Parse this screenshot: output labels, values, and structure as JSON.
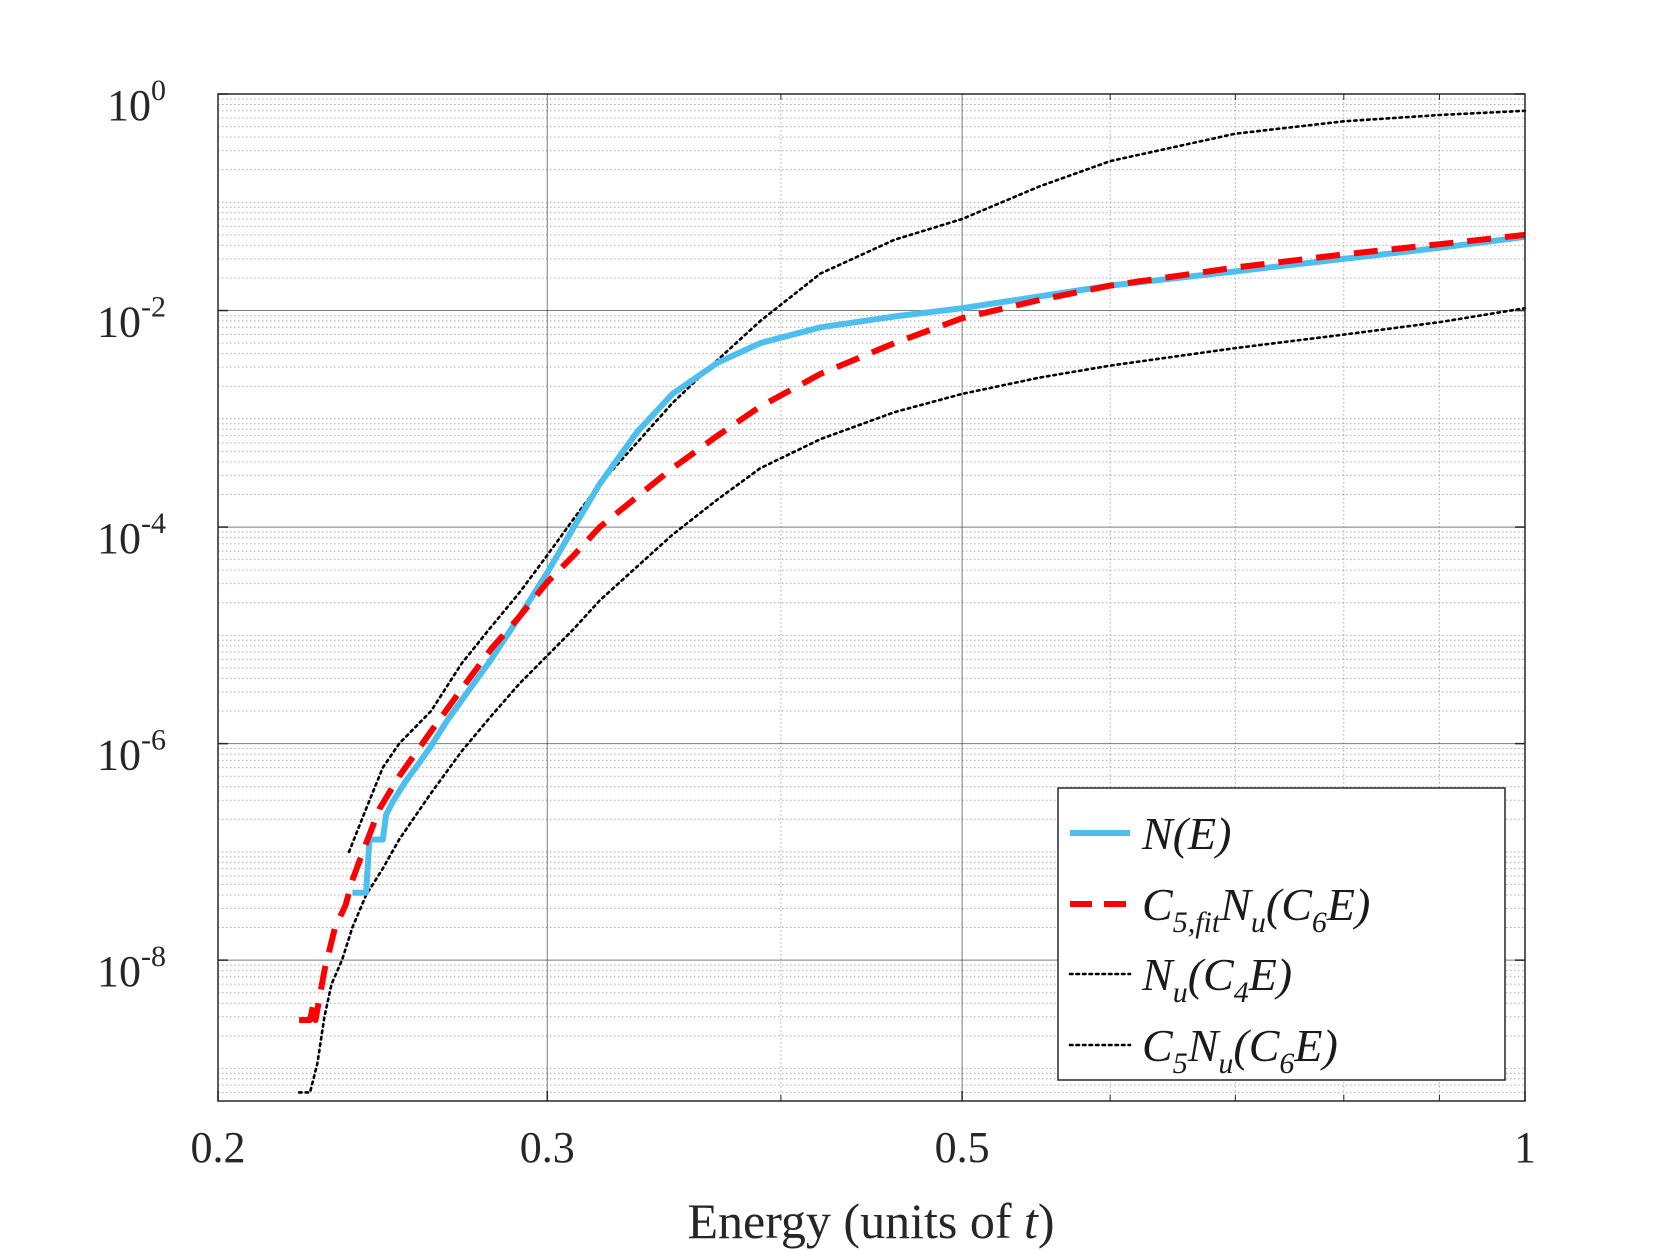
{
  "chart_data": {
    "type": "line",
    "title": "",
    "xlabel": "Energy (units of t)",
    "ylabel": "",
    "xscale": "log",
    "yscale": "log",
    "xlim": [
      0.2,
      1.0
    ],
    "ylim": [
      5e-10,
      1.0
    ],
    "grid": true,
    "minor_grid": true,
    "legend_position": "bottom-right",
    "x_ticks": [
      {
        "value": 0.2,
        "label": "0.2"
      },
      {
        "value": 0.3,
        "label": "0.3"
      },
      {
        "value": 0.5,
        "label": "0.5"
      },
      {
        "value": 1.0,
        "label": "1"
      }
    ],
    "y_ticks": [
      {
        "value": 1.0,
        "base": "10",
        "exp": "0"
      },
      {
        "value": 0.01,
        "base": "10",
        "exp": "-2"
      },
      {
        "value": 0.0001,
        "base": "10",
        "exp": "-4"
      },
      {
        "value": 1e-06,
        "base": "10",
        "exp": "-6"
      },
      {
        "value": 1e-08,
        "base": "10",
        "exp": "-8"
      }
    ],
    "series": [
      {
        "name": "N(E)",
        "color": "#4DBEEE",
        "style": "solid",
        "x": [
          0.236,
          0.24,
          0.241,
          0.245,
          0.246,
          0.248,
          0.252,
          0.256,
          0.26,
          0.265,
          0.272,
          0.28,
          0.29,
          0.3,
          0.31,
          0.32,
          0.335,
          0.35,
          0.37,
          0.39,
          0.42,
          0.46,
          0.5,
          0.55,
          0.6,
          0.7,
          0.8,
          0.9,
          1.0
        ],
        "y": [
          4.2e-08,
          4.2e-08,
          1.3e-07,
          1.3e-07,
          2.2e-07,
          2.9e-07,
          4.5e-07,
          6.5e-07,
          9.5e-07,
          1.6e-06,
          3e-06,
          6e-06,
          1.5e-05,
          3.8e-05,
          0.0001,
          0.00025,
          0.00075,
          0.0017,
          0.0033,
          0.005,
          0.007,
          0.0088,
          0.0105,
          0.0135,
          0.017,
          0.023,
          0.03,
          0.038,
          0.048
        ]
      },
      {
        "name": "C5,fit Nu(C6E)",
        "color": "#FF0000",
        "style": "dashed",
        "x": [
          0.221,
          0.224,
          0.225,
          0.2255,
          0.228,
          0.231,
          0.234,
          0.236,
          0.24,
          0.244,
          0.25,
          0.26,
          0.27,
          0.28,
          0.29,
          0.3,
          0.31,
          0.32,
          0.335,
          0.35,
          0.37,
          0.39,
          0.42,
          0.46,
          0.5,
          0.55,
          0.6,
          0.7,
          0.8,
          0.9,
          1.0
        ],
        "y": [
          2.8e-09,
          2.8e-09,
          4e-09,
          2.8e-09,
          8e-09,
          2e-08,
          3.2e-08,
          5.5e-08,
          1.2e-07,
          2.5e-07,
          5e-07,
          1.3e-06,
          3.2e-06,
          7.5e-06,
          1.5e-05,
          3.1e-05,
          5.5e-05,
          0.0001,
          0.00019,
          0.00035,
          0.0007,
          0.0013,
          0.0026,
          0.005,
          0.0085,
          0.0125,
          0.017,
          0.025,
          0.033,
          0.041,
          0.05
        ]
      },
      {
        "name": "Nu(C4E)",
        "color": "#000000",
        "style": "dotted",
        "x": [
          0.235,
          0.24,
          0.245,
          0.25,
          0.26,
          0.27,
          0.28,
          0.29,
          0.3,
          0.31,
          0.32,
          0.335,
          0.35,
          0.37,
          0.39,
          0.42,
          0.46,
          0.5,
          0.55,
          0.6,
          0.7,
          0.8,
          0.9,
          1.0
        ],
        "y": [
          1e-07,
          2.5e-07,
          6e-07,
          1e-06,
          2e-06,
          5.5e-06,
          1.2e-05,
          2.5e-05,
          5.5e-05,
          0.00012,
          0.00025,
          0.0006,
          0.0014,
          0.0035,
          0.008,
          0.022,
          0.045,
          0.07,
          0.14,
          0.24,
          0.43,
          0.56,
          0.64,
          0.7
        ]
      },
      {
        "name": "C5Nu(C6E)",
        "color": "#000000",
        "style": "dotted",
        "x": [
          0.221,
          0.224,
          0.226,
          0.228,
          0.23,
          0.233,
          0.236,
          0.24,
          0.245,
          0.25,
          0.26,
          0.27,
          0.28,
          0.29,
          0.3,
          0.31,
          0.32,
          0.335,
          0.35,
          0.37,
          0.39,
          0.42,
          0.46,
          0.5,
          0.55,
          0.6,
          0.7,
          0.8,
          0.9,
          1.0
        ],
        "y": [
          6e-10,
          6e-10,
          1.1e-09,
          3e-09,
          6e-09,
          1e-08,
          2e-08,
          4e-08,
          7e-08,
          1.3e-07,
          3.5e-07,
          8.5e-07,
          1.8e-06,
          3.6e-06,
          6.5e-06,
          1.15e-05,
          2.1e-05,
          4.3e-05,
          8.5e-05,
          0.00018,
          0.00035,
          0.00065,
          0.00115,
          0.0017,
          0.0024,
          0.0031,
          0.0045,
          0.006,
          0.0078,
          0.0105
        ]
      }
    ],
    "legend": [
      {
        "series": 0,
        "base": "N",
        "sub": "",
        "rest": "(E)"
      },
      {
        "series": 1,
        "base": "C",
        "sub": "5,fit",
        "rest": "N",
        "sub2": "u",
        "tail": "(C",
        "sub3": "6",
        "end": "E)"
      },
      {
        "series": 2,
        "base": "N",
        "sub": "u",
        "rest": "(C",
        "sub2": "4",
        "tail": "E)"
      },
      {
        "series": 3,
        "base": "C",
        "sub": "5",
        "rest": "N",
        "sub2": "u",
        "tail": "(C",
        "sub3": "6",
        "end": "E)"
      }
    ]
  }
}
